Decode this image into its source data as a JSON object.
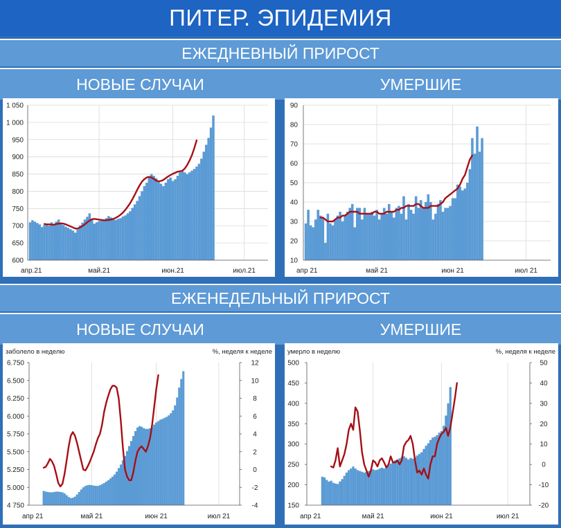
{
  "header": {
    "title": "ПИТЕР. ЭПИДЕМИЯ",
    "daily_section": "ЕЖЕДНЕВНЫЙ ПРИРОСТ",
    "weekly_section": "ЕЖЕНЕДЕЛЬНЫЙ ПРИРОСТ",
    "daily_left": "НОВЫЕ СЛУЧАИ",
    "daily_right": "УМЕРШИЕ",
    "weekly_left": "НОВЫЕ СЛУЧАИ",
    "weekly_right": "УМЕРШИЕ"
  },
  "colors": {
    "bar": "#5b9bd5",
    "line": "#a50f15",
    "grid": "#d9d9d9"
  },
  "chart_data": [
    {
      "id": "daily-cases",
      "type": "bar",
      "title": "",
      "ylim": [
        600,
        1050
      ],
      "yticks": [
        600,
        650,
        700,
        750,
        800,
        850,
        900,
        950,
        1000,
        1050
      ],
      "ytick_labels": [
        "600",
        "650",
        "700",
        "750",
        "800",
        "850",
        "900",
        "950",
        "1 000",
        "1 050"
      ],
      "xlim": [
        0,
        101
      ],
      "xticks": [
        0,
        30,
        61,
        91
      ],
      "xtick_labels": [
        "апр.21",
        "май.21",
        "июн.21",
        "июл.21"
      ],
      "bar_start": 1,
      "values": [
        710,
        716,
        712,
        708,
        704,
        696,
        702,
        705,
        700,
        710,
        704,
        712,
        718,
        708,
        702,
        697,
        694,
        690,
        686,
        680,
        690,
        701,
        709,
        718,
        726,
        736,
        718,
        706,
        710,
        714,
        718,
        718,
        722,
        728,
        724,
        720,
        717,
        720,
        722,
        727,
        730,
        736,
        742,
        752,
        762,
        772,
        786,
        800,
        815,
        825,
        840,
        850,
        845,
        838,
        830,
        822,
        815,
        825,
        835,
        840,
        830,
        835,
        845,
        855,
        860,
        855,
        850,
        855,
        860,
        865,
        872,
        880,
        895,
        915,
        935,
        955,
        985,
        1020
      ],
      "line_start": 7,
      "line": [
        705,
        704,
        704,
        703,
        703,
        705,
        706,
        707,
        706,
        704,
        701,
        698,
        695,
        692,
        692,
        695,
        699,
        704,
        710,
        715,
        719,
        720,
        719,
        718,
        717,
        716,
        716,
        717,
        718,
        720,
        723,
        727,
        732,
        738,
        746,
        755,
        765,
        777,
        790,
        804,
        817,
        828,
        835,
        840,
        842,
        840,
        836,
        831,
        829,
        830,
        833,
        838,
        843,
        847,
        851,
        854,
        857,
        858,
        860,
        866,
        876,
        889,
        905,
        925,
        948
      ]
    },
    {
      "id": "daily-deaths",
      "type": "bar",
      "title": "",
      "ylim": [
        10,
        90
      ],
      "yticks": [
        10,
        20,
        30,
        40,
        50,
        60,
        70,
        80,
        90
      ],
      "ytick_labels": [
        "10",
        "20",
        "30",
        "40",
        "50",
        "60",
        "70",
        "80",
        "90"
      ],
      "xlim": [
        0,
        101
      ],
      "xticks": [
        0,
        30,
        61,
        91
      ],
      "xtick_labels": [
        "апр 21",
        "май 21",
        "июн 21",
        "июл 21"
      ],
      "bar_start": 1,
      "values": [
        29,
        36,
        28,
        27,
        31,
        36,
        33,
        32,
        19,
        34,
        29,
        28,
        31,
        33,
        35,
        30,
        33,
        35,
        37,
        39,
        27,
        37,
        37,
        31,
        37,
        34,
        34,
        35,
        33,
        36,
        31,
        34,
        37,
        34,
        39,
        35,
        32,
        37,
        38,
        34,
        43,
        31,
        39,
        36,
        34,
        43,
        37,
        41,
        37,
        40,
        44,
        40,
        31,
        34,
        39,
        41,
        35,
        37,
        37,
        38,
        42,
        42,
        49,
        48,
        46,
        47,
        50,
        57,
        73,
        65,
        79,
        66,
        73
      ],
      "line_start": 7,
      "line": [
        32,
        32,
        31,
        30,
        30,
        30,
        31,
        32,
        32,
        33,
        33,
        34,
        35,
        35,
        35,
        35,
        34,
        34,
        34,
        34,
        34,
        34,
        35,
        35,
        34,
        34,
        34,
        35,
        35,
        35,
        35,
        36,
        36,
        37,
        37,
        38,
        38,
        38,
        38,
        39,
        39,
        38,
        37,
        37,
        37,
        38,
        38,
        38,
        38,
        39,
        40,
        42,
        43,
        44,
        45,
        46,
        47,
        49,
        52,
        54,
        58,
        62,
        64
      ]
    },
    {
      "id": "weekly-cases",
      "type": "bar",
      "title": "",
      "ylabel": "заболело в неделю",
      "y2label": "%, неделя к неделе",
      "ylim": [
        4750,
        6750
      ],
      "yticks": [
        4750,
        5000,
        5250,
        5500,
        5750,
        6000,
        6250,
        6500,
        6750
      ],
      "ytick_labels": [
        "4 750",
        "5.000",
        "5.250",
        "5.500",
        "5.750",
        "6.000",
        "6.250",
        "6.500",
        "6.750"
      ],
      "y2lim": [
        -4,
        12
      ],
      "y2ticks": [
        -4,
        -2,
        0,
        2,
        4,
        6,
        8,
        10,
        12
      ],
      "y2tick_labels": [
        "-4",
        "-2",
        "0",
        "2",
        "4",
        "6",
        "8",
        "10",
        "12"
      ],
      "xlim": [
        0,
        101
      ],
      "xticks": [
        0,
        30,
        61,
        91
      ],
      "xtick_labels": [
        "апр 21",
        "май 21",
        "июн 21",
        "июл 21"
      ],
      "bar_start": 7,
      "values": [
        4950,
        4940,
        4935,
        4930,
        4930,
        4935,
        4940,
        4940,
        4935,
        4930,
        4915,
        4890,
        4865,
        4850,
        4855,
        4870,
        4900,
        4935,
        4970,
        5000,
        5020,
        5030,
        5035,
        5030,
        5025,
        5020,
        5020,
        5030,
        5045,
        5060,
        5080,
        5100,
        5125,
        5150,
        5180,
        5220,
        5270,
        5320,
        5380,
        5440,
        5510,
        5580,
        5650,
        5720,
        5790,
        5840,
        5860,
        5850,
        5830,
        5820,
        5820,
        5830,
        5850,
        5880,
        5910,
        5930,
        5950,
        5960,
        5975,
        5990,
        6010,
        6040,
        6080,
        6150,
        6260,
        6400,
        6520,
        6630
      ],
      "line_start": 7,
      "line_axis": "y2",
      "line": [
        0.2,
        0.3,
        0.7,
        1.2,
        0.9,
        0.4,
        -0.5,
        -1.5,
        -1.9,
        -1.6,
        -0.5,
        1.0,
        2.6,
        3.8,
        4.2,
        3.8,
        3.0,
        2.0,
        1.0,
        0.0,
        -0.1,
        0.3,
        0.8,
        1.4,
        2.0,
        2.8,
        3.5,
        4.0,
        5.0,
        6.5,
        7.5,
        8.3,
        9.0,
        9.4,
        9.4,
        9.2,
        8.0,
        5.5,
        2.5,
        0.0,
        -0.8,
        -1.2,
        -1.2,
        -0.3,
        1.0,
        2.0,
        2.4,
        2.6,
        2.3,
        2.0,
        2.6,
        3.5,
        5.0,
        7.0,
        9.0,
        10.6
      ]
    },
    {
      "id": "weekly-deaths",
      "type": "bar",
      "title": "",
      "ylabel": "умерло в неделю",
      "y2label": "%, неделя к неделе",
      "ylim": [
        150,
        500
      ],
      "yticks": [
        150,
        200,
        250,
        300,
        350,
        400,
        450,
        500
      ],
      "ytick_labels": [
        "150",
        "200",
        "250",
        "300",
        "350",
        "400",
        "450",
        "500"
      ],
      "y2lim": [
        -20,
        50
      ],
      "y2ticks": [
        -20,
        -10,
        0,
        10,
        20,
        30,
        40,
        50
      ],
      "y2tick_labels": [
        "-20",
        "-10",
        "0",
        "10",
        "20",
        "30",
        "40",
        "50"
      ],
      "xlim": [
        0,
        101
      ],
      "xticks": [
        0,
        30,
        61,
        91
      ],
      "xtick_labels": [
        "апр 21",
        "май 21",
        "июн 21",
        "июл 21"
      ],
      "bar_start": 7,
      "values": [
        220,
        218,
        212,
        208,
        210,
        205,
        203,
        202,
        208,
        214,
        222,
        230,
        236,
        240,
        245,
        240,
        236,
        234,
        232,
        230,
        232,
        234,
        236,
        238,
        236,
        237,
        240,
        242,
        240,
        244,
        248,
        252,
        256,
        260,
        262,
        265,
        268,
        270,
        266,
        262,
        266,
        264,
        268,
        272,
        276,
        280,
        288,
        296,
        302,
        310,
        316,
        318,
        322,
        328,
        332,
        345,
        370,
        400,
        440
      ],
      "line_start": 11,
      "line_axis": "y2",
      "line": [
        -1.0,
        -1.5,
        2.0,
        8.0,
        -1.0,
        2.0,
        5.0,
        10.0,
        17.0,
        20.0,
        17.0,
        28.0,
        26.0,
        17.0,
        6.0,
        0.0,
        -3.0,
        -6.0,
        -3.0,
        2.0,
        1.0,
        -1.0,
        2.0,
        3.0,
        1.0,
        -1.5,
        0.0,
        4.0,
        1.0,
        1.0,
        2.0,
        0.0,
        2.0,
        9.0,
        11.0,
        12.0,
        14.0,
        10.0,
        2.0,
        -4.0,
        -3.0,
        -5.0,
        -2.0,
        -5.0,
        -7.0,
        0.0,
        4.0,
        4.0,
        10.0,
        13.0,
        15.0,
        16.0,
        18.0,
        14.0,
        18.0,
        25.0,
        32.0,
        40.0
      ]
    }
  ]
}
